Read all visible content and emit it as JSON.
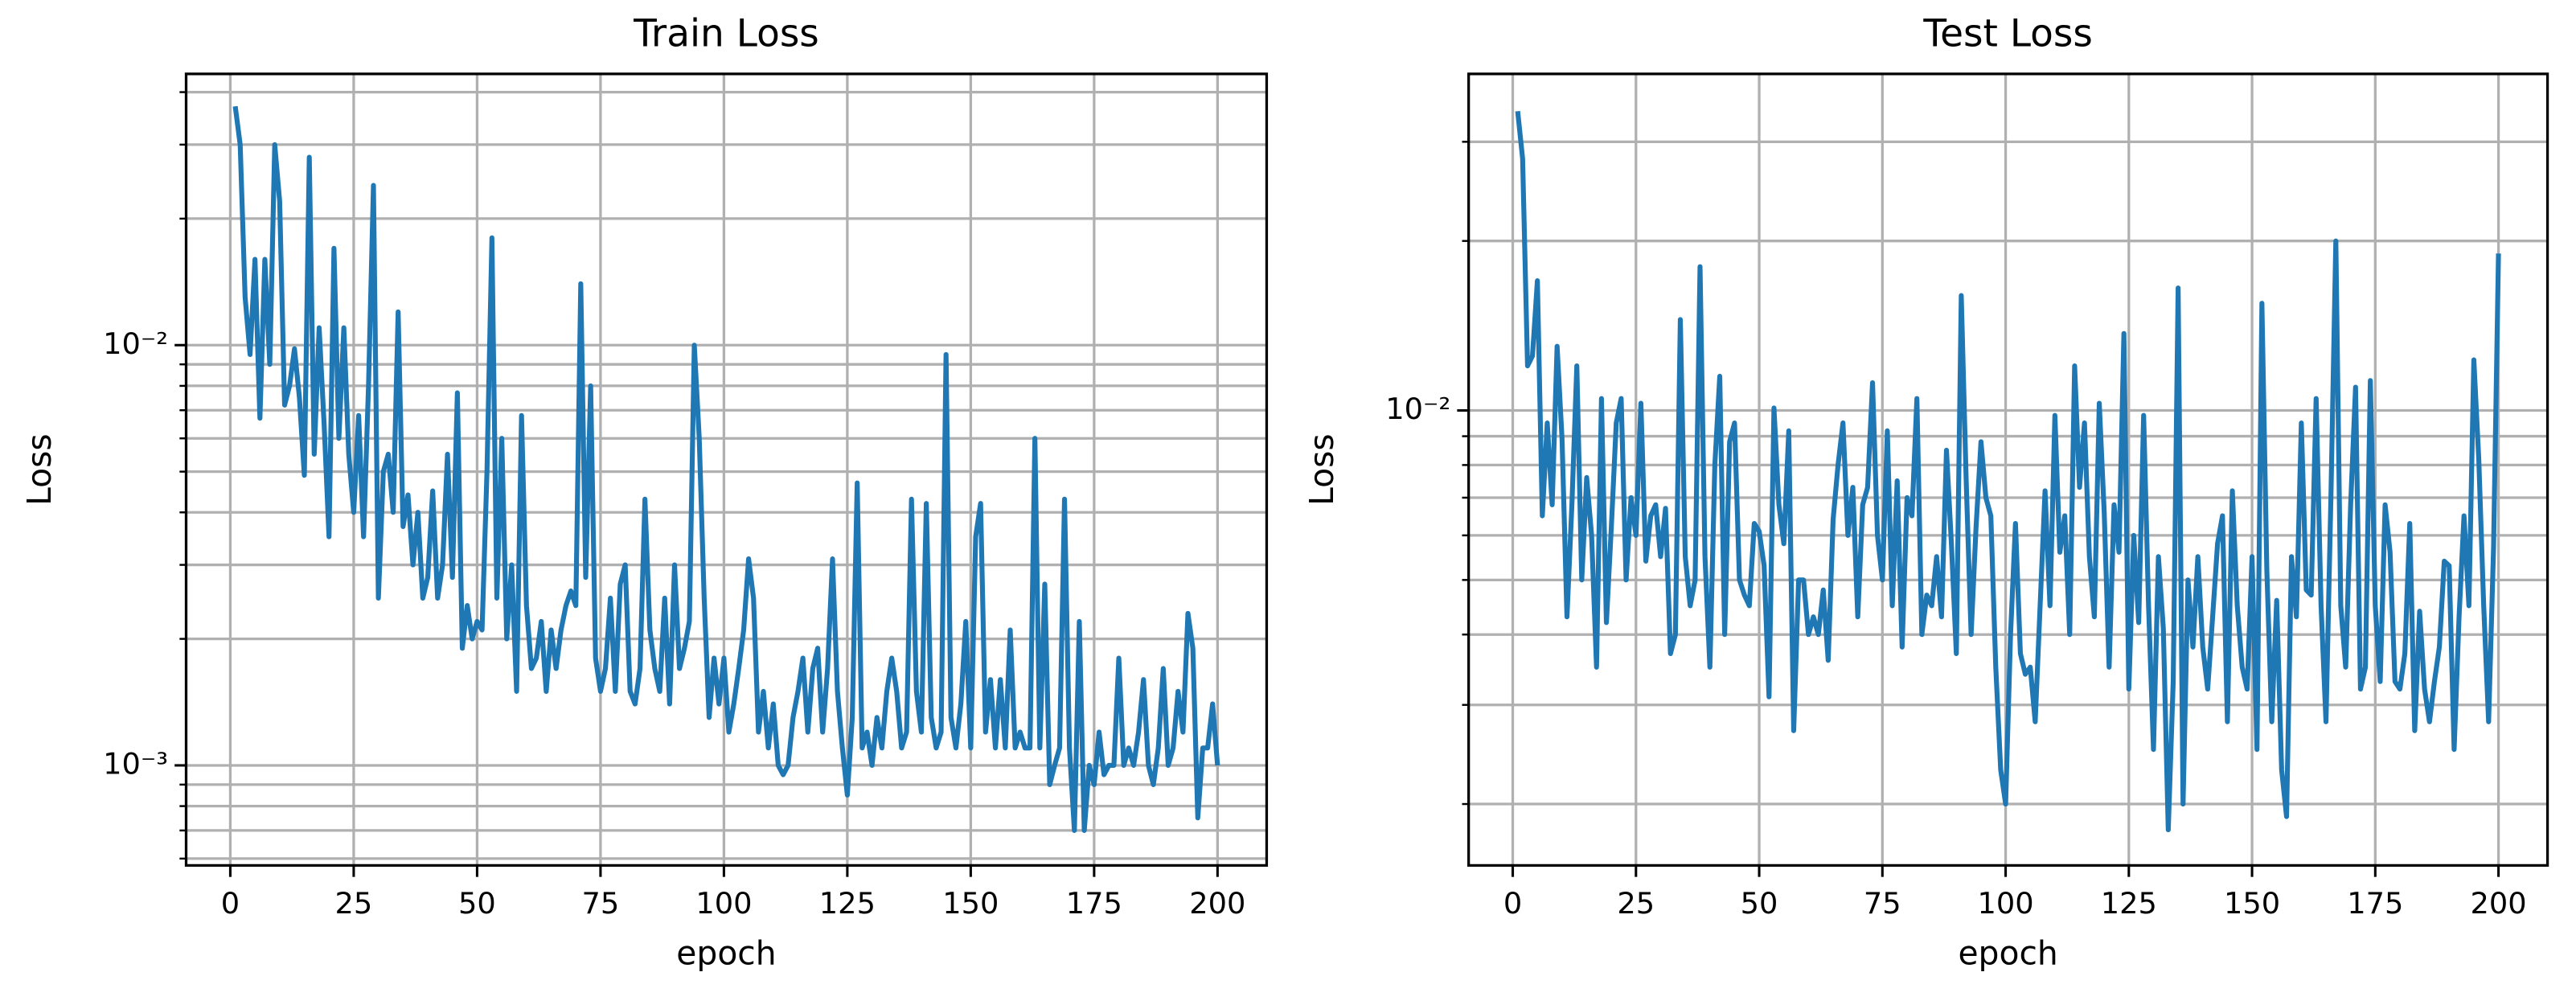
{
  "chart_data": [
    {
      "type": "line",
      "title": "Train Loss",
      "xlabel": "epoch",
      "ylabel": "Loss",
      "yscale": "log",
      "grid": true,
      "x": [
        1,
        2,
        3,
        4,
        5,
        6,
        7,
        8,
        9,
        10,
        11,
        12,
        13,
        14,
        15,
        16,
        17,
        18,
        19,
        20,
        21,
        22,
        23,
        24,
        25,
        26,
        27,
        28,
        29,
        30,
        31,
        32,
        33,
        34,
        35,
        36,
        37,
        38,
        39,
        40,
        41,
        42,
        43,
        44,
        45,
        46,
        47,
        48,
        49,
        50,
        51,
        52,
        53,
        54,
        55,
        56,
        57,
        58,
        59,
        60,
        61,
        62,
        63,
        64,
        65,
        66,
        67,
        68,
        69,
        70,
        71,
        72,
        73,
        74,
        75,
        76,
        77,
        78,
        79,
        80,
        81,
        82,
        83,
        84,
        85,
        86,
        87,
        88,
        89,
        90,
        91,
        92,
        93,
        94,
        95,
        96,
        97,
        98,
        99,
        100,
        101,
        102,
        103,
        104,
        105,
        106,
        107,
        108,
        109,
        110,
        111,
        112,
        113,
        114,
        115,
        116,
        117,
        118,
        119,
        120,
        121,
        122,
        123,
        124,
        125,
        126,
        127,
        128,
        129,
        130,
        131,
        132,
        133,
        134,
        135,
        136,
        137,
        138,
        139,
        140,
        141,
        142,
        143,
        144,
        145,
        146,
        147,
        148,
        149,
        150,
        151,
        152,
        153,
        154,
        155,
        156,
        157,
        158,
        159,
        160,
        161,
        162,
        163,
        164,
        165,
        166,
        167,
        168,
        169,
        170,
        171,
        172,
        173,
        174,
        175,
        176,
        177,
        178,
        179,
        180,
        181,
        182,
        183,
        184,
        185,
        186,
        187,
        188,
        189,
        190,
        191,
        192,
        193,
        194,
        195,
        196,
        197,
        198,
        199,
        200
      ],
      "series": [
        {
          "name": "Train Loss",
          "color": "#1f77b4",
          "values": [
            0.037,
            0.03,
            0.013,
            0.0095,
            0.016,
            0.0067,
            0.016,
            0.009,
            0.03,
            0.022,
            0.0072,
            0.008,
            0.0098,
            0.0075,
            0.0049,
            0.028,
            0.0055,
            0.011,
            0.0065,
            0.0035,
            0.017,
            0.006,
            0.011,
            0.0055,
            0.004,
            0.0068,
            0.0035,
            0.008,
            0.024,
            0.0025,
            0.005,
            0.0055,
            0.004,
            0.012,
            0.0037,
            0.0044,
            0.003,
            0.004,
            0.0025,
            0.0028,
            0.0045,
            0.0025,
            0.003,
            0.0055,
            0.0028,
            0.0077,
            0.0019,
            0.0024,
            0.002,
            0.0022,
            0.0021,
            0.005,
            0.018,
            0.0025,
            0.006,
            0.002,
            0.003,
            0.0015,
            0.0068,
            0.0024,
            0.0017,
            0.0018,
            0.0022,
            0.0015,
            0.0021,
            0.0017,
            0.0021,
            0.0024,
            0.0026,
            0.0024,
            0.014,
            0.0028,
            0.008,
            0.0018,
            0.0015,
            0.0017,
            0.0025,
            0.0015,
            0.0027,
            0.003,
            0.0015,
            0.0014,
            0.0017,
            0.0043,
            0.0021,
            0.0017,
            0.0015,
            0.0025,
            0.0014,
            0.003,
            0.0017,
            0.0019,
            0.0022,
            0.01,
            0.006,
            0.0025,
            0.0013,
            0.0018,
            0.0014,
            0.0018,
            0.0012,
            0.0014,
            0.0017,
            0.0021,
            0.0031,
            0.0025,
            0.0012,
            0.0015,
            0.0011,
            0.0014,
            0.001,
            0.00095,
            0.001,
            0.0013,
            0.0015,
            0.0018,
            0.0012,
            0.0017,
            0.0019,
            0.0012,
            0.0017,
            0.0031,
            0.0015,
            0.0011,
            0.00085,
            0.0013,
            0.0047,
            0.0011,
            0.0012,
            0.001,
            0.0013,
            0.0011,
            0.0015,
            0.0018,
            0.0015,
            0.0011,
            0.0012,
            0.0043,
            0.0015,
            0.0012,
            0.0042,
            0.0013,
            0.0011,
            0.0012,
            0.0095,
            0.0013,
            0.0011,
            0.0014,
            0.0022,
            0.0011,
            0.0035,
            0.0042,
            0.0012,
            0.0016,
            0.0011,
            0.0016,
            0.0011,
            0.0021,
            0.0011,
            0.0012,
            0.0011,
            0.0011,
            0.006,
            0.0011,
            0.0027,
            0.0009,
            0.001,
            0.0011,
            0.0043,
            0.0011,
            0.0007,
            0.0022,
            0.0007,
            0.001,
            0.0009,
            0.0012,
            0.00095,
            0.001,
            0.001,
            0.0018,
            0.001,
            0.0011,
            0.001,
            0.0012,
            0.0016,
            0.001,
            0.0009,
            0.0011,
            0.0017,
            0.001,
            0.0011,
            0.0015,
            0.0012,
            0.0023,
            0.0019,
            0.00075,
            0.0011,
            0.0011,
            0.0014,
            0.001
          ]
        }
      ],
      "xlim": [
        -8.95,
        209.95
      ],
      "xticks": [
        0,
        25,
        50,
        75,
        100,
        125,
        150,
        175,
        200
      ],
      "ylim": [
        0.000578,
        0.0442
      ],
      "yticks": [
        {
          "value": 0.001,
          "label": "10⁻³"
        },
        {
          "value": 0.01,
          "label": "10⁻²"
        }
      ],
      "yminorticks": [
        0.0006,
        0.0007,
        0.0008,
        0.0009,
        0.002,
        0.003,
        0.004,
        0.005,
        0.006,
        0.007,
        0.008,
        0.009,
        0.02,
        0.03,
        0.04
      ]
    },
    {
      "type": "line",
      "title": "Test Loss",
      "xlabel": "epoch",
      "ylabel": "Loss",
      "yscale": "log",
      "grid": true,
      "x": [
        1,
        2,
        3,
        4,
        5,
        6,
        7,
        8,
        9,
        10,
        11,
        12,
        13,
        14,
        15,
        16,
        17,
        18,
        19,
        20,
        21,
        22,
        23,
        24,
        25,
        26,
        27,
        28,
        29,
        30,
        31,
        32,
        33,
        34,
        35,
        36,
        37,
        38,
        39,
        40,
        41,
        42,
        43,
        44,
        45,
        46,
        47,
        48,
        49,
        50,
        51,
        52,
        53,
        54,
        55,
        56,
        57,
        58,
        59,
        60,
        61,
        62,
        63,
        64,
        65,
        66,
        67,
        68,
        69,
        70,
        71,
        72,
        73,
        74,
        75,
        76,
        77,
        78,
        79,
        80,
        81,
        82,
        83,
        84,
        85,
        86,
        87,
        88,
        89,
        90,
        91,
        92,
        93,
        94,
        95,
        96,
        97,
        98,
        99,
        100,
        101,
        102,
        103,
        104,
        105,
        106,
        107,
        108,
        109,
        110,
        111,
        112,
        113,
        114,
        115,
        116,
        117,
        118,
        119,
        120,
        121,
        122,
        123,
        124,
        125,
        126,
        127,
        128,
        129,
        130,
        131,
        132,
        133,
        134,
        135,
        136,
        137,
        138,
        139,
        140,
        141,
        142,
        143,
        144,
        145,
        146,
        147,
        148,
        149,
        150,
        151,
        152,
        153,
        154,
        155,
        156,
        157,
        158,
        159,
        160,
        161,
        162,
        163,
        164,
        165,
        166,
        167,
        168,
        169,
        170,
        171,
        172,
        173,
        174,
        175,
        176,
        177,
        178,
        179,
        180,
        181,
        182,
        183,
        184,
        185,
        186,
        187,
        188,
        189,
        190,
        191,
        192,
        193,
        194,
        195,
        196,
        197,
        198,
        199,
        200
      ],
      "series": [
        {
          "name": "Test Loss",
          "color": "#1f77b4",
          "values": [
            0.034,
            0.028,
            0.012,
            0.0125,
            0.017,
            0.0065,
            0.0095,
            0.0068,
            0.013,
            0.0089,
            0.0043,
            0.0068,
            0.012,
            0.005,
            0.0076,
            0.006,
            0.0035,
            0.0105,
            0.0042,
            0.0062,
            0.0095,
            0.0105,
            0.005,
            0.007,
            0.006,
            0.0103,
            0.0054,
            0.0065,
            0.0068,
            0.0055,
            0.0067,
            0.0037,
            0.004,
            0.0145,
            0.0055,
            0.0045,
            0.005,
            0.018,
            0.0055,
            0.0035,
            0.008,
            0.0115,
            0.004,
            0.0088,
            0.0095,
            0.005,
            0.0047,
            0.0045,
            0.0063,
            0.0061,
            0.0053,
            0.0031,
            0.0101,
            0.0068,
            0.0058,
            0.0092,
            0.0027,
            0.005,
            0.005,
            0.004,
            0.0043,
            0.004,
            0.0048,
            0.0036,
            0.0064,
            0.008,
            0.0095,
            0.006,
            0.0073,
            0.0043,
            0.0068,
            0.0073,
            0.0112,
            0.006,
            0.005,
            0.0092,
            0.0045,
            0.0075,
            0.0038,
            0.007,
            0.0065,
            0.0105,
            0.004,
            0.0047,
            0.0045,
            0.0055,
            0.0043,
            0.0085,
            0.0058,
            0.0037,
            0.016,
            0.0075,
            0.004,
            0.0062,
            0.0088,
            0.007,
            0.0065,
            0.0035,
            0.0023,
            0.002,
            0.004,
            0.0063,
            0.0037,
            0.0034,
            0.0035,
            0.0028,
            0.0045,
            0.0072,
            0.0045,
            0.0098,
            0.0056,
            0.0065,
            0.004,
            0.012,
            0.0073,
            0.0095,
            0.0055,
            0.0043,
            0.0103,
            0.0066,
            0.0035,
            0.0068,
            0.0056,
            0.0137,
            0.0032,
            0.006,
            0.0042,
            0.0098,
            0.0045,
            0.0025,
            0.0055,
            0.0041,
            0.0018,
            0.0033,
            0.0165,
            0.002,
            0.005,
            0.0038,
            0.0055,
            0.0038,
            0.0032,
            0.0043,
            0.0058,
            0.0065,
            0.0028,
            0.0072,
            0.0045,
            0.0035,
            0.0032,
            0.0055,
            0.0025,
            0.0155,
            0.0052,
            0.0028,
            0.0046,
            0.0023,
            0.0019,
            0.0055,
            0.0043,
            0.0095,
            0.0048,
            0.0047,
            0.0105,
            0.0045,
            0.0028,
            0.007,
            0.02,
            0.0045,
            0.0035,
            0.0068,
            0.011,
            0.0032,
            0.0035,
            0.0113,
            0.0045,
            0.0033,
            0.0068,
            0.0056,
            0.0033,
            0.0032,
            0.0037,
            0.0063,
            0.0027,
            0.0044,
            0.0032,
            0.0028,
            0.0033,
            0.0038,
            0.0054,
            0.0053,
            0.0025,
            0.0043,
            0.0065,
            0.0045,
            0.0123,
            0.0082,
            0.0045,
            0.0028,
            0.0057,
            0.019
          ]
        }
      ],
      "xlim": [
        -8.95,
        209.95
      ],
      "xticks": [
        0,
        25,
        50,
        75,
        100,
        125,
        150,
        175,
        200
      ],
      "ylim": [
        0.001556,
        0.0396
      ],
      "yticks": [
        {
          "value": 0.01,
          "label": "10⁻²"
        }
      ],
      "yminorticks": [
        0.002,
        0.003,
        0.004,
        0.005,
        0.006,
        0.007,
        0.008,
        0.009,
        0.02,
        0.03
      ]
    }
  ]
}
